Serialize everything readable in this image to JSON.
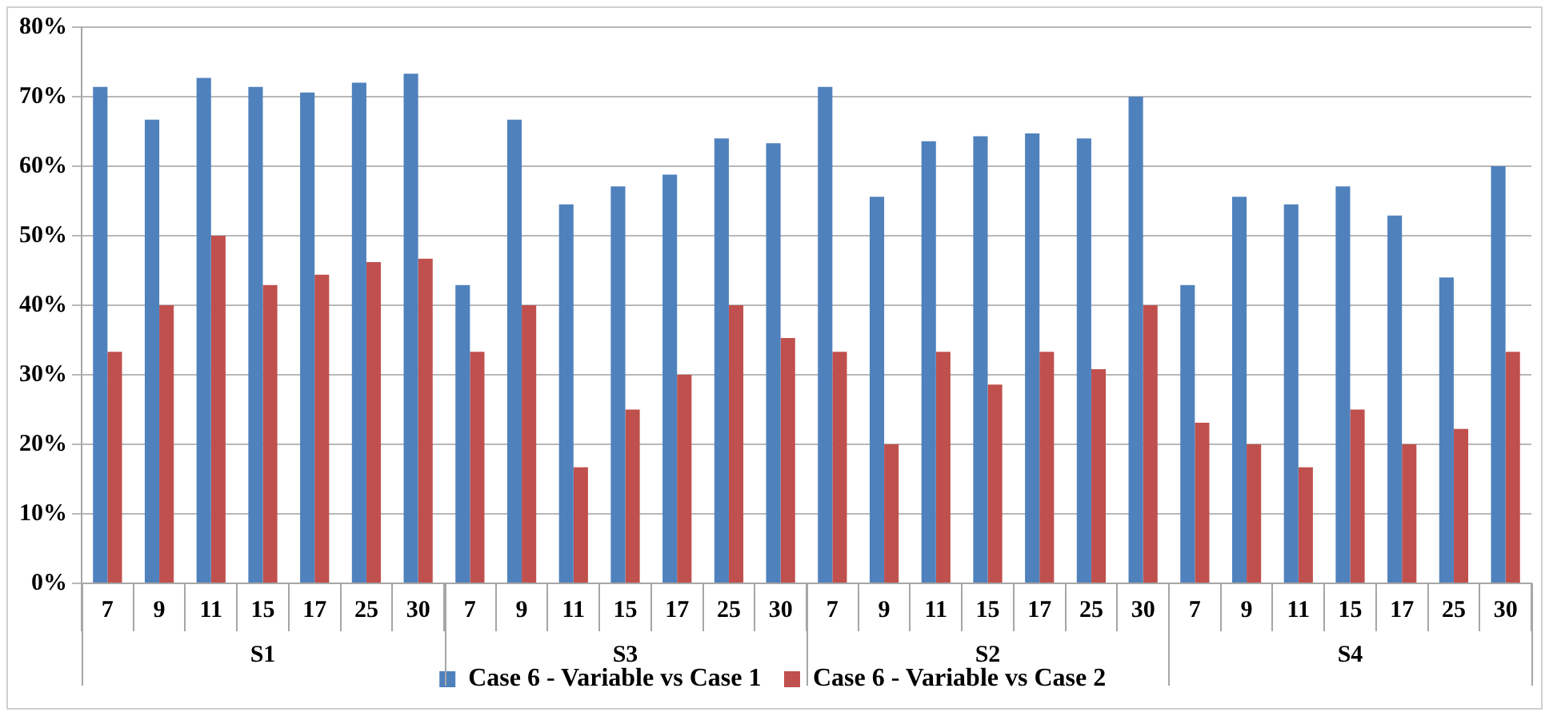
{
  "chart_data": {
    "type": "bar",
    "categories": [
      "7",
      "9",
      "11",
      "15",
      "17",
      "25",
      "30",
      "7",
      "9",
      "11",
      "15",
      "17",
      "25",
      "30",
      "7",
      "9",
      "11",
      "15",
      "17",
      "25",
      "30",
      "7",
      "9",
      "11",
      "15",
      "17",
      "25",
      "30"
    ],
    "annotations": [
      "S1",
      "S3",
      "S2",
      "S4"
    ],
    "series": [
      {
        "name": "Case 6 - Variable vs Case 1",
        "color": "#4f81bd",
        "values": [
          71.4,
          66.7,
          72.7,
          71.4,
          70.6,
          72,
          73.3,
          42.9,
          66.7,
          54.5,
          57.1,
          58.8,
          64,
          63.3,
          71.4,
          55.6,
          63.6,
          64.3,
          64.7,
          64,
          70,
          42.9,
          55.6,
          54.5,
          57.1,
          52.9,
          44,
          60
        ]
      },
      {
        "name": "Case 6 - Variable vs Case 2",
        "color": "#c0504d",
        "values": [
          33.3,
          40,
          50,
          42.9,
          44.4,
          46.2,
          46.7,
          33.3,
          40,
          16.7,
          25,
          30,
          40,
          35.3,
          33.3,
          20,
          33.3,
          28.6,
          33.3,
          30.8,
          40,
          23.1,
          20,
          16.7,
          25,
          20,
          22.2,
          33.3
        ]
      }
    ],
    "ylim": [
      0,
      80
    ],
    "yticks": [
      {
        "value": 0,
        "label": "0%"
      },
      {
        "value": 10,
        "label": "10%"
      },
      {
        "value": 20,
        "label": "20%"
      },
      {
        "value": 30,
        "label": "30%"
      },
      {
        "value": 40,
        "label": "40%"
      },
      {
        "value": 50,
        "label": "50%"
      },
      {
        "value": 60,
        "label": "60%"
      },
      {
        "value": 70,
        "label": "70%"
      },
      {
        "value": 80,
        "label": "80%"
      }
    ],
    "grid": "y",
    "legend": "bottom"
  }
}
